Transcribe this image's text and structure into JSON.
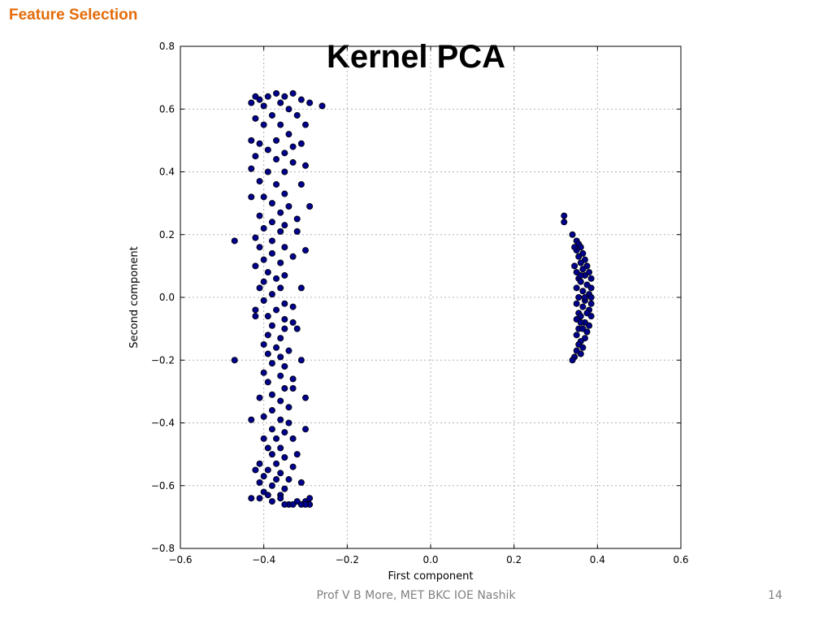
{
  "slide": {
    "header": "Feature Selection",
    "title": "Kernel PCA",
    "footer": "Prof V B More, MET BKC IOE Nashik",
    "page_number": "14"
  },
  "chart_data": {
    "type": "scatter",
    "title": "",
    "xlabel": "First component",
    "ylabel": "Second component",
    "xlim": [
      -0.6,
      0.6
    ],
    "ylim": [
      -0.8,
      0.8
    ],
    "x_ticks": [
      -0.6,
      -0.4,
      -0.2,
      0.0,
      0.2,
      0.4,
      0.6
    ],
    "y_ticks": [
      -0.8,
      -0.6,
      -0.4,
      -0.2,
      0.0,
      0.2,
      0.4,
      0.6,
      0.8
    ],
    "x_tick_labels": [
      "−0.6",
      "−0.4",
      "−0.2",
      "0.0",
      "0.2",
      "0.4",
      "0.6"
    ],
    "y_tick_labels": [
      "−0.8",
      "−0.6",
      "−0.4",
      "−0.2",
      "0.0",
      "0.2",
      "0.4",
      "0.6",
      "0.8"
    ],
    "grid": true,
    "marker_color": "#00008b",
    "series": [
      {
        "points": [
          [
            -0.42,
            0.64
          ],
          [
            -0.41,
            0.63
          ],
          [
            -0.39,
            0.64
          ],
          [
            -0.37,
            0.65
          ],
          [
            -0.35,
            0.64
          ],
          [
            -0.33,
            0.65
          ],
          [
            -0.31,
            0.63
          ],
          [
            -0.29,
            0.62
          ],
          [
            -0.26,
            0.61
          ],
          [
            -0.43,
            0.62
          ],
          [
            -0.4,
            0.61
          ],
          [
            -0.36,
            0.62
          ],
          [
            -0.34,
            0.6
          ],
          [
            -0.38,
            0.58
          ],
          [
            -0.42,
            0.57
          ],
          [
            -0.32,
            0.58
          ],
          [
            -0.3,
            0.55
          ],
          [
            -0.4,
            0.55
          ],
          [
            -0.36,
            0.55
          ],
          [
            -0.34,
            0.52
          ],
          [
            -0.43,
            0.5
          ],
          [
            -0.41,
            0.49
          ],
          [
            -0.37,
            0.5
          ],
          [
            -0.33,
            0.48
          ],
          [
            -0.31,
            0.49
          ],
          [
            -0.39,
            0.47
          ],
          [
            -0.35,
            0.46
          ],
          [
            -0.42,
            0.45
          ],
          [
            -0.37,
            0.44
          ],
          [
            -0.33,
            0.43
          ],
          [
            -0.3,
            0.42
          ],
          [
            -0.43,
            0.41
          ],
          [
            -0.39,
            0.4
          ],
          [
            -0.35,
            0.4
          ],
          [
            -0.41,
            0.37
          ],
          [
            -0.37,
            0.36
          ],
          [
            -0.31,
            0.36
          ],
          [
            -0.35,
            0.33
          ],
          [
            -0.4,
            0.32
          ],
          [
            -0.43,
            0.32
          ],
          [
            -0.38,
            0.3
          ],
          [
            -0.34,
            0.29
          ],
          [
            -0.29,
            0.29
          ],
          [
            -0.36,
            0.27
          ],
          [
            -0.41,
            0.26
          ],
          [
            -0.32,
            0.25
          ],
          [
            -0.38,
            0.24
          ],
          [
            -0.35,
            0.23
          ],
          [
            -0.4,
            0.22
          ],
          [
            -0.36,
            0.21
          ],
          [
            -0.32,
            0.21
          ],
          [
            -0.42,
            0.19
          ],
          [
            -0.38,
            0.18
          ],
          [
            -0.47,
            0.18
          ],
          [
            -0.41,
            0.16
          ],
          [
            -0.35,
            0.16
          ],
          [
            -0.3,
            0.15
          ],
          [
            -0.38,
            0.14
          ],
          [
            -0.33,
            0.13
          ],
          [
            -0.4,
            0.12
          ],
          [
            -0.36,
            0.11
          ],
          [
            -0.42,
            0.1
          ],
          [
            -0.39,
            0.08
          ],
          [
            -0.35,
            0.07
          ],
          [
            -0.37,
            0.06
          ],
          [
            -0.4,
            0.05
          ],
          [
            -0.41,
            0.03
          ],
          [
            -0.36,
            0.03
          ],
          [
            -0.31,
            0.03
          ],
          [
            -0.38,
            0.01
          ],
          [
            -0.4,
            -0.01
          ],
          [
            -0.35,
            -0.02
          ],
          [
            -0.42,
            -0.04
          ],
          [
            -0.37,
            -0.04
          ],
          [
            -0.33,
            -0.03
          ],
          [
            -0.39,
            -0.06
          ],
          [
            -0.42,
            -0.06
          ],
          [
            -0.35,
            -0.07
          ],
          [
            -0.33,
            -0.08
          ],
          [
            -0.38,
            -0.09
          ],
          [
            -0.35,
            -0.1
          ],
          [
            -0.32,
            -0.1
          ],
          [
            -0.39,
            -0.12
          ],
          [
            -0.36,
            -0.13
          ],
          [
            -0.4,
            -0.15
          ],
          [
            -0.37,
            -0.16
          ],
          [
            -0.34,
            -0.17
          ],
          [
            -0.39,
            -0.18
          ],
          [
            -0.36,
            -0.19
          ],
          [
            -0.47,
            -0.2
          ],
          [
            -0.31,
            -0.2
          ],
          [
            -0.38,
            -0.21
          ],
          [
            -0.35,
            -0.22
          ],
          [
            -0.4,
            -0.24
          ],
          [
            -0.36,
            -0.25
          ],
          [
            -0.33,
            -0.26
          ],
          [
            -0.39,
            -0.27
          ],
          [
            -0.35,
            -0.29
          ],
          [
            -0.33,
            -0.29
          ],
          [
            -0.38,
            -0.31
          ],
          [
            -0.41,
            -0.32
          ],
          [
            -0.36,
            -0.33
          ],
          [
            -0.3,
            -0.32
          ],
          [
            -0.34,
            -0.35
          ],
          [
            -0.38,
            -0.36
          ],
          [
            -0.4,
            -0.38
          ],
          [
            -0.43,
            -0.39
          ],
          [
            -0.36,
            -0.39
          ],
          [
            -0.34,
            -0.4
          ],
          [
            -0.38,
            -0.42
          ],
          [
            -0.3,
            -0.42
          ],
          [
            -0.35,
            -0.43
          ],
          [
            -0.4,
            -0.45
          ],
          [
            -0.37,
            -0.45
          ],
          [
            -0.33,
            -0.45
          ],
          [
            -0.39,
            -0.48
          ],
          [
            -0.36,
            -0.48
          ],
          [
            -0.32,
            -0.5
          ],
          [
            -0.38,
            -0.5
          ],
          [
            -0.35,
            -0.51
          ],
          [
            -0.41,
            -0.53
          ],
          [
            -0.37,
            -0.53
          ],
          [
            -0.33,
            -0.54
          ],
          [
            -0.39,
            -0.55
          ],
          [
            -0.36,
            -0.56
          ],
          [
            -0.42,
            -0.55
          ],
          [
            -0.4,
            -0.57
          ],
          [
            -0.37,
            -0.58
          ],
          [
            -0.34,
            -0.58
          ],
          [
            -0.41,
            -0.59
          ],
          [
            -0.38,
            -0.6
          ],
          [
            -0.35,
            -0.61
          ],
          [
            -0.4,
            -0.62
          ],
          [
            -0.36,
            -0.63
          ],
          [
            -0.39,
            -0.63
          ],
          [
            -0.31,
            -0.59
          ],
          [
            -0.43,
            -0.64
          ],
          [
            -0.41,
            -0.64
          ],
          [
            -0.38,
            -0.65
          ],
          [
            -0.36,
            -0.64
          ],
          [
            -0.34,
            -0.66
          ],
          [
            -0.32,
            -0.65
          ],
          [
            -0.3,
            -0.65
          ],
          [
            -0.29,
            -0.64
          ],
          [
            -0.33,
            -0.66
          ],
          [
            -0.31,
            -0.66
          ],
          [
            -0.29,
            -0.66
          ],
          [
            -0.35,
            -0.66
          ],
          [
            -0.3,
            -0.66
          ]
        ]
      },
      {
        "points": [
          [
            0.32,
            0.26
          ],
          [
            0.32,
            0.24
          ],
          [
            0.34,
            0.2
          ],
          [
            0.35,
            0.18
          ],
          [
            0.355,
            0.17
          ],
          [
            0.36,
            0.16
          ],
          [
            0.35,
            0.15
          ],
          [
            0.365,
            0.14
          ],
          [
            0.355,
            0.13
          ],
          [
            0.37,
            0.12
          ],
          [
            0.36,
            0.11
          ],
          [
            0.345,
            0.1
          ],
          [
            0.375,
            0.1
          ],
          [
            0.365,
            0.09
          ],
          [
            0.35,
            0.08
          ],
          [
            0.38,
            0.08
          ],
          [
            0.37,
            0.07
          ],
          [
            0.355,
            0.06
          ],
          [
            0.385,
            0.06
          ],
          [
            0.36,
            0.05
          ],
          [
            0.375,
            0.04
          ],
          [
            0.35,
            0.03
          ],
          [
            0.385,
            0.03
          ],
          [
            0.365,
            0.02
          ],
          [
            0.38,
            0.01
          ],
          [
            0.355,
            0.0
          ],
          [
            0.385,
            0.0
          ],
          [
            0.37,
            -0.01
          ],
          [
            0.35,
            -0.02
          ],
          [
            0.385,
            -0.02
          ],
          [
            0.365,
            -0.03
          ],
          [
            0.38,
            -0.04
          ],
          [
            0.355,
            -0.05
          ],
          [
            0.375,
            -0.05
          ],
          [
            0.36,
            -0.06
          ],
          [
            0.385,
            -0.06
          ],
          [
            0.35,
            -0.07
          ],
          [
            0.37,
            -0.08
          ],
          [
            0.38,
            -0.09
          ],
          [
            0.355,
            -0.1
          ],
          [
            0.365,
            -0.1
          ],
          [
            0.375,
            -0.11
          ],
          [
            0.35,
            -0.12
          ],
          [
            0.37,
            -0.13
          ],
          [
            0.36,
            -0.14
          ],
          [
            0.355,
            -0.15
          ],
          [
            0.365,
            -0.16
          ],
          [
            0.35,
            -0.17
          ],
          [
            0.36,
            -0.18
          ],
          [
            0.345,
            -0.19
          ],
          [
            0.34,
            -0.2
          ],
          [
            0.345,
            0.16
          ],
          [
            0.36,
            0.07
          ],
          [
            0.37,
            0.0
          ],
          [
            0.36,
            -0.08
          ]
        ]
      }
    ]
  }
}
